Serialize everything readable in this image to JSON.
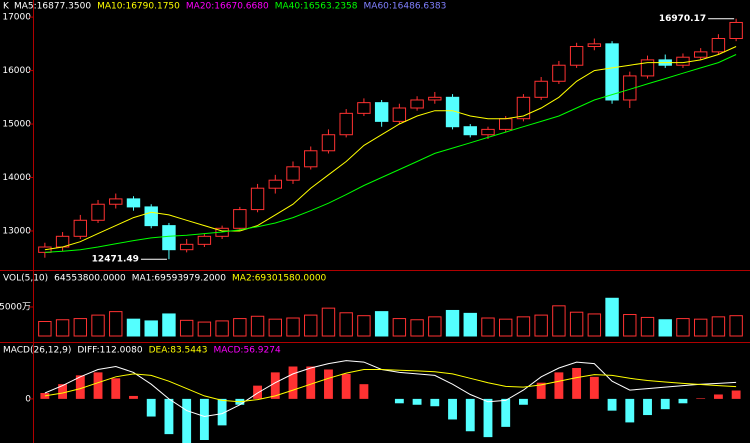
{
  "chart_data": [
    {
      "type": "candlestick",
      "label": "K",
      "legend": [
        {
          "text": "MA5:16877.3500",
          "color": "#ffffff"
        },
        {
          "text": "MA10:16790.1750",
          "color": "#ffff00"
        },
        {
          "text": "MA20:16670.6680",
          "color": "#ff00ff"
        },
        {
          "text": "MA40:16563.2358",
          "color": "#00ff00"
        },
        {
          "text": "MA60:16486.6383",
          "color": "#8080ff"
        }
      ],
      "open": [
        12600,
        12700,
        12900,
        13200,
        13500,
        13600,
        13450,
        13100,
        12650,
        12750,
        12900,
        13050,
        13400,
        13800,
        13950,
        14200,
        14500,
        14800,
        15200,
        15400,
        15050,
        15300,
        15450,
        15500,
        14950,
        14800,
        14900,
        15100,
        15500,
        15800,
        16100,
        16450,
        16500,
        15450,
        15900,
        16200,
        16100,
        16250,
        16350,
        16600
      ],
      "high": [
        12780,
        12980,
        13300,
        13580,
        13700,
        13650,
        13500,
        13150,
        12850,
        12950,
        13100,
        13450,
        13880,
        14050,
        14300,
        14580,
        14900,
        15280,
        15480,
        15450,
        15380,
        15520,
        15600,
        15560,
        15000,
        14950,
        15150,
        15560,
        15880,
        16180,
        16520,
        16600,
        16550,
        15980,
        16280,
        16300,
        16320,
        16420,
        16680,
        16970.17
      ],
      "low": [
        12500,
        12620,
        12850,
        13150,
        13420,
        13380,
        13050,
        12471.49,
        12600,
        12700,
        12850,
        13000,
        13350,
        13700,
        13880,
        14150,
        14450,
        14750,
        15150,
        14950,
        15000,
        15250,
        15380,
        14900,
        14750,
        14720,
        14850,
        15050,
        15450,
        15750,
        16050,
        16380,
        15380,
        15300,
        15850,
        16050,
        16050,
        16200,
        16300,
        16550
      ],
      "close": [
        12700,
        12900,
        13200,
        13500,
        13600,
        13450,
        13100,
        12650,
        12750,
        12900,
        13050,
        13400,
        13800,
        13950,
        14200,
        14500,
        14800,
        15200,
        15400,
        15050,
        15300,
        15450,
        15500,
        14950,
        14800,
        14900,
        15100,
        15500,
        15800,
        16100,
        16450,
        16500,
        15450,
        15900,
        16200,
        16100,
        16250,
        16350,
        16600,
        16900
      ],
      "series": [
        {
          "color": "#ffff00",
          "values": [
            12650,
            12700,
            12800,
            12950,
            13100,
            13250,
            13350,
            13300,
            13200,
            13100,
            13000,
            13000,
            13100,
            13300,
            13500,
            13800,
            14050,
            14300,
            14600,
            14800,
            15000,
            15150,
            15250,
            15250,
            15150,
            15100,
            15100,
            15150,
            15300,
            15500,
            15800,
            16000,
            16050,
            16100,
            16150,
            16150,
            16150,
            16200,
            16300,
            16450
          ]
        },
        {
          "color": "#00ff00",
          "values": [
            12600,
            12620,
            12650,
            12700,
            12760,
            12820,
            12870,
            12900,
            12920,
            12950,
            12980,
            13020,
            13080,
            13150,
            13250,
            13380,
            13520,
            13680,
            13850,
            14000,
            14150,
            14300,
            14450,
            14550,
            14650,
            14750,
            14850,
            14950,
            15050,
            15150,
            15300,
            15450,
            15550,
            15650,
            15750,
            15850,
            15950,
            16050,
            16150,
            16300
          ]
        }
      ],
      "up_color": "#ff3232",
      "down_color": "#54ffff",
      "annotations": [
        16970.17,
        12471.49
      ],
      "ylim": [
        12270,
        17320
      ],
      "yticks": [
        13000,
        14000,
        15000,
        16000,
        17000
      ]
    },
    {
      "type": "volume",
      "legend": [
        {
          "text": "VOL(5,10)",
          "color": "#ffffff"
        },
        {
          "text": "64553800.0000",
          "color": "#ffffff"
        },
        {
          "text": "MA1:69593979.2000",
          "color": "#ffffff"
        },
        {
          "text": "MA2:69301580.0000",
          "color": "#ffff00"
        }
      ],
      "values": [
        2500,
        2800,
        3000,
        3600,
        4200,
        2900,
        2600,
        3800,
        2700,
        2400,
        2600,
        3000,
        3400,
        2900,
        3100,
        3600,
        4800,
        4000,
        3500,
        4200,
        3000,
        2800,
        3300,
        4400,
        3900,
        3100,
        2900,
        3300,
        3600,
        5200,
        4100,
        3800,
        6500,
        3700,
        3200,
        2800,
        3000,
        2900,
        3300,
        3500
      ],
      "ylim": [
        0,
        11200
      ],
      "yticks": [
        {
          "value": 5000,
          "label": "5000万"
        }
      ]
    },
    {
      "type": "macd",
      "legend": [
        {
          "text": "MACD(26,12,9)",
          "color": "#ffffff"
        },
        {
          "text": "DIFF:112.0080",
          "color": "#ffffff"
        },
        {
          "text": "DEA:83.5443",
          "color": "#ffff00"
        },
        {
          "text": "MACD:56.9274",
          "color": "#ff00ff"
        }
      ],
      "values": [
        40,
        100,
        160,
        180,
        140,
        20,
        -120,
        -240,
        -300,
        -280,
        -180,
        -40,
        90,
        180,
        220,
        220,
        200,
        170,
        100,
        0,
        -30,
        -40,
        -50,
        -140,
        -220,
        -260,
        -190,
        -40,
        110,
        180,
        210,
        150,
        -80,
        -160,
        -110,
        -70,
        -30,
        4,
        30,
        56.9274
      ],
      "series": [
        {
          "color": "#ffffff",
          "values": [
            40,
            90,
            150,
            200,
            220,
            180,
            100,
            0,
            -80,
            -120,
            -100,
            -40,
            40,
            110,
            170,
            210,
            240,
            260,
            250,
            200,
            180,
            170,
            160,
            100,
            30,
            -20,
            -10,
            60,
            150,
            210,
            250,
            240,
            120,
            60,
            70,
            80,
            90,
            100,
            105,
            112.008
          ]
        },
        {
          "color": "#ffff00",
          "values": [
            20,
            40,
            70,
            110,
            150,
            170,
            160,
            120,
            70,
            20,
            -10,
            -20,
            -5,
            20,
            60,
            100,
            140,
            175,
            200,
            200,
            195,
            190,
            185,
            170,
            140,
            110,
            85,
            80,
            95,
            120,
            145,
            165,
            160,
            140,
            125,
            115,
            105,
            98,
            90,
            83.5443
          ]
        }
      ],
      "up_color": "#ff3232",
      "down_color": "#54ffff",
      "ylim": [
        -300,
        380
      ],
      "yticks": [
        0
      ]
    }
  ]
}
